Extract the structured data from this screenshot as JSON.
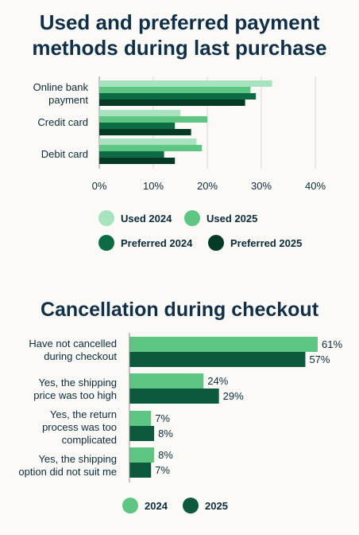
{
  "colors": {
    "used_2024": "#a8e3bf",
    "used_2025": "#5ec683",
    "preferred_2024": "#0c6a45",
    "preferred_2025": "#053b25",
    "c2024": "#5ec683",
    "c2025": "#0c5a3b",
    "text": "#0b2a3b",
    "grid": "#d9d6cf"
  },
  "chart1": {
    "title_line1": "Used and preferred payment",
    "title_line2": "methods during last purchase",
    "chart_data": {
      "type": "bar",
      "orientation": "horizontal",
      "categories": [
        "Online bank payment",
        "Credit card",
        "Debit card"
      ],
      "series": [
        {
          "name": "Used 2024",
          "values": [
            32,
            15,
            18
          ]
        },
        {
          "name": "Used 2025",
          "values": [
            28,
            20,
            19
          ]
        },
        {
          "name": "Preferred 2024",
          "values": [
            29,
            14,
            12
          ]
        },
        {
          "name": "Preferred 2025",
          "values": [
            27,
            17,
            14
          ]
        }
      ],
      "xlim": [
        0,
        40
      ],
      "xticks": [
        "0%",
        "10%",
        "20%",
        "30%",
        "40%"
      ],
      "grid": true,
      "legend": "bottom"
    }
  },
  "chart2": {
    "title": "Cancellation during checkout",
    "chart_data": {
      "type": "bar",
      "orientation": "horizontal",
      "categories": [
        "Have not cancelled during checkout",
        "Yes, the shipping price was too high",
        "Yes, the return process was too complicated",
        "Yes, the shipping option did not suit me"
      ],
      "series": [
        {
          "name": "2024",
          "values": [
            61,
            24,
            7,
            8
          ],
          "labels": [
            "61%",
            "24%",
            "7%",
            "8%"
          ]
        },
        {
          "name": "2025",
          "values": [
            57,
            29,
            8,
            7
          ],
          "labels": [
            "57%",
            "29%",
            "8%",
            "7%"
          ]
        }
      ],
      "xlim": [
        0,
        70
      ],
      "legend": "bottom"
    }
  }
}
